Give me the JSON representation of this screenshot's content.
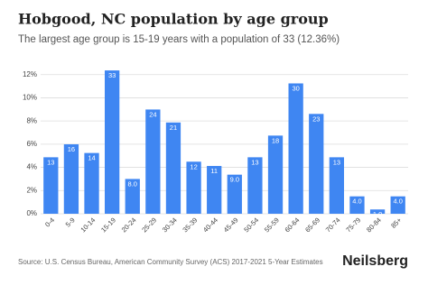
{
  "chart_data": {
    "type": "bar",
    "title": "Hobgood, NC population by age group",
    "subtitle": "The largest age group is 15-19 years with a population of 33 (12.36%)",
    "categories": [
      "0-4",
      "5-9",
      "10-14",
      "15-19",
      "20-24",
      "25-29",
      "30-34",
      "35-39",
      "40-44",
      "45-49",
      "50-54",
      "55-59",
      "60-64",
      "65-69",
      "70-74",
      "75-79",
      "80-84",
      "85+"
    ],
    "values": [
      4.87,
      5.99,
      5.24,
      12.36,
      3.0,
      8.99,
      7.87,
      4.49,
      4.12,
      3.37,
      4.87,
      6.74,
      11.24,
      8.61,
      4.87,
      1.5,
      0.37,
      1.5
    ],
    "value_labels": [
      "13",
      "16",
      "14",
      "33",
      "8.0",
      "24",
      "21",
      "12",
      "11",
      "9.0",
      "13",
      "18",
      "30",
      "23",
      "13",
      "4.0",
      "1.0",
      "4.0"
    ],
    "color": "#3f86f2",
    "ylim": [
      0,
      12.6
    ],
    "yticks": [
      {
        "value": 0,
        "label": "0%"
      },
      {
        "value": 2,
        "label": "2%"
      },
      {
        "value": 4,
        "label": "4%"
      },
      {
        "value": 6,
        "label": "6%"
      },
      {
        "value": 8,
        "label": "8%"
      },
      {
        "value": 10,
        "label": "10%"
      },
      {
        "value": 12,
        "label": "12%"
      }
    ],
    "grid": true,
    "source": "Source: U.S. Census Bureau, American Community Survey (ACS) 2017-2021 5-Year Estimates",
    "brand": "Neilsberg"
  }
}
